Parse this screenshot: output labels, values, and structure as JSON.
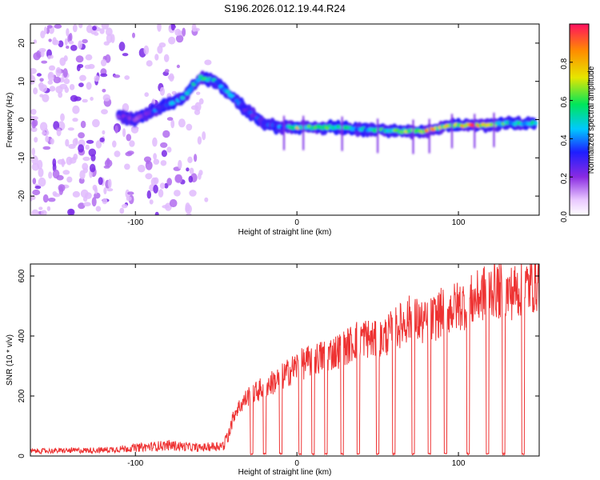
{
  "figure": {
    "title": "S196.2026.012.19.44.R24"
  },
  "chart_data": [
    {
      "type": "heatmap",
      "title": "S196.2026.012.19.44.R24",
      "xlabel": "Height of straight line (km)",
      "ylabel": "Frequency (Hz)",
      "xlim": [
        -165,
        150
      ],
      "ylim": [
        -25,
        25
      ],
      "xticks": [
        -100,
        0,
        100
      ],
      "yticks": [
        -20,
        -10,
        0,
        10,
        20
      ],
      "colorbar": {
        "label": "Normalized spectral amplitude",
        "range": [
          0,
          1
        ],
        "ticks": [
          0.0,
          0.2,
          0.4,
          0.6,
          0.8
        ]
      },
      "ridge": {
        "x": [
          -110,
          -100,
          -90,
          -80,
          -70,
          -60,
          -50,
          -40,
          -30,
          -20,
          -10,
          0,
          20,
          40,
          60,
          80,
          95,
          110,
          130,
          148
        ],
        "freq": [
          1,
          0,
          2,
          4,
          6,
          11,
          10,
          6,
          2,
          -1,
          -2,
          -2,
          -2,
          -2.5,
          -3,
          -3,
          -1.5,
          -1.5,
          -1,
          -1
        ],
        "amplitude": [
          0.3,
          0.25,
          0.4,
          0.45,
          0.5,
          0.6,
          0.55,
          0.45,
          0.35,
          0.4,
          0.45,
          0.75,
          0.7,
          0.5,
          0.65,
          0.9,
          0.8,
          0.95,
          0.6,
          0.55
        ]
      },
      "noise_region": {
        "x_range": [
          -165,
          -55
        ],
        "description_level": "low amplitude scattered"
      }
    },
    {
      "type": "line",
      "xlabel": "Height of straight line (km)",
      "ylabel": "SNR (10 * v/v)",
      "xlim": [
        -165,
        150
      ],
      "ylim": [
        0,
        640
      ],
      "xticks": [
        -100,
        0,
        100
      ],
      "yticks": [
        0,
        200,
        400,
        600
      ],
      "color": "#ee3333",
      "envelope": {
        "x": [
          -165,
          -120,
          -100,
          -80,
          -60,
          -45,
          -38,
          -30,
          -20,
          -10,
          0,
          10,
          20,
          30,
          40,
          50,
          60,
          70,
          80,
          90,
          100,
          110,
          120,
          130,
          140,
          150
        ],
        "snr": [
          18,
          22,
          30,
          40,
          30,
          40,
          150,
          200,
          230,
          260,
          300,
          320,
          340,
          360,
          400,
          380,
          420,
          460,
          440,
          480,
          500,
          520,
          560,
          540,
          560,
          580
        ]
      },
      "dropouts": [
        -28,
        -20,
        -10,
        2,
        10,
        18,
        28,
        38,
        50,
        60,
        72,
        82,
        92,
        106,
        118,
        128,
        140
      ]
    }
  ]
}
